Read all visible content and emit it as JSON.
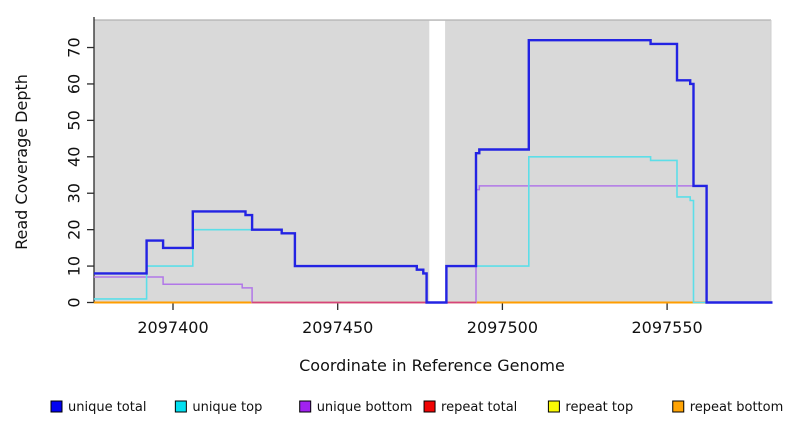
{
  "figure": {
    "background": "#ffffff",
    "plot_background": "#d9d9d9",
    "axis_color": "#2b2b2b",
    "xlabel": "Coordinate in Reference Genome",
    "ylabel": "Read Coverage Depth"
  },
  "chart_data": {
    "type": "line",
    "subtype": "step-coverage",
    "title": "",
    "xlabel": "Coordinate in Reference Genome",
    "ylabel": "Read Coverage Depth",
    "xlim": [
      2097376,
      2097582
    ],
    "ylim": [
      0,
      78
    ],
    "x_ticks": [
      2097400,
      2097450,
      2097500,
      2097550
    ],
    "y_ticks": [
      0,
      10,
      20,
      30,
      40,
      50,
      60,
      70
    ],
    "grid": false,
    "legend_position": "bottom",
    "y_tick_label_rotation_deg": -90,
    "gap_region": {
      "x_start": 2097477.8,
      "x_end": 2097482.6,
      "color": "#ffffff"
    },
    "draw_order": [
      "repeat top",
      "repeat bottom",
      "unique bottom",
      "repeat total",
      "unique top",
      "unique total"
    ],
    "series": [
      {
        "name": "unique total",
        "color": "#2323e3",
        "line_width": 2.4,
        "step_points": [
          [
            2097376,
            8
          ],
          [
            2097392,
            17
          ],
          [
            2097397,
            15
          ],
          [
            2097406,
            25
          ],
          [
            2097422,
            24
          ],
          [
            2097424,
            20
          ],
          [
            2097433,
            19
          ],
          [
            2097437,
            10
          ],
          [
            2097474,
            9
          ],
          [
            2097476,
            8
          ],
          [
            2097477,
            0
          ],
          [
            2097483,
            10
          ],
          [
            2097492,
            41
          ],
          [
            2097493,
            42
          ],
          [
            2097508,
            72
          ],
          [
            2097545,
            71
          ],
          [
            2097553,
            61
          ],
          [
            2097557,
            60
          ],
          [
            2097558,
            32
          ],
          [
            2097562,
            0
          ]
        ]
      },
      {
        "name": "unique top",
        "color": "#5cdee8",
        "line_width": 1.6,
        "step_points": [
          [
            2097376,
            1
          ],
          [
            2097392,
            10
          ],
          [
            2097406,
            20
          ],
          [
            2097433,
            19
          ],
          [
            2097437,
            10
          ],
          [
            2097474,
            9
          ],
          [
            2097476,
            8
          ],
          [
            2097477,
            0
          ],
          [
            2097483,
            10
          ],
          [
            2097508,
            40
          ],
          [
            2097545,
            39
          ],
          [
            2097553,
            29
          ],
          [
            2097557,
            28
          ],
          [
            2097558,
            0
          ]
        ]
      },
      {
        "name": "unique bottom",
        "color": "#b177e8",
        "line_width": 1.5,
        "step_points": [
          [
            2097376,
            7
          ],
          [
            2097397,
            5
          ],
          [
            2097421,
            4
          ],
          [
            2097424,
            0
          ],
          [
            2097492,
            31
          ],
          [
            2097493,
            32
          ],
          [
            2097562,
            0
          ]
        ]
      },
      {
        "name": "repeat total",
        "color": "#d6447c",
        "line_width": 1.6,
        "step_points": [
          [
            2097376,
            0
          ]
        ],
        "draw_range": [
          2097424,
          2097492
        ]
      },
      {
        "name": "repeat top",
        "color": "#f0f000",
        "line_width": 1.4,
        "step_points": [
          [
            2097376,
            0
          ]
        ]
      },
      {
        "name": "repeat bottom",
        "color": "#ff9d00",
        "line_width": 1.9,
        "step_points": [
          [
            2097376,
            0
          ]
        ]
      }
    ],
    "legend": [
      {
        "label": "unique total",
        "color": "#0202f0"
      },
      {
        "label": "unique top",
        "color": "#02dff0"
      },
      {
        "label": "unique bottom",
        "color": "#a122f0"
      },
      {
        "label": "repeat total",
        "color": "#f00505"
      },
      {
        "label": "repeat top",
        "color": "#fafa05"
      },
      {
        "label": "repeat bottom",
        "color": "#ffa405"
      }
    ]
  }
}
